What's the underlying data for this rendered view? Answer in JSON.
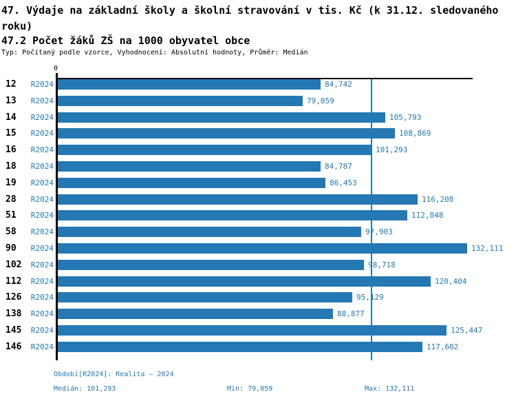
{
  "header": {
    "title": "47. Výdaje na základní školy a školní stravování v tis. Kč (k 31.12. sledovaného roku)",
    "subtitle": "47.2 Počet žáků ZŠ na 1000 obyvatel obce",
    "meta": "Typ: Počítaný podle vzorce, Vyhodnocení: Absolutní hodnoty, Průměr: Medián"
  },
  "axis": {
    "zero_label": "0"
  },
  "footer": {
    "period": "Období[R2024]: Realita – 2024",
    "median": "Medián: 101,293",
    "min": "Min: 79,059",
    "max": "Max: 132,111"
  },
  "colors": {
    "bar": "#2478b4",
    "text_blue": "#1f77b4",
    "axis": "#000000"
  },
  "chart_data": {
    "type": "bar",
    "orientation": "horizontal",
    "title": "47. Výdaje na základní školy a školní stravování v tis. Kč (k 31.12. sledovaného roku)",
    "subtitle": "47.2 Počet žáků ZŠ na 1000 obyvatel obce",
    "categories": [
      "12",
      "13",
      "14",
      "15",
      "16",
      "18",
      "19",
      "28",
      "51",
      "58",
      "90",
      "102",
      "112",
      "126",
      "138",
      "145",
      "146"
    ],
    "series": [
      {
        "name": "R2024",
        "values": [
          84.742,
          79.059,
          105.793,
          108.869,
          101.293,
          84.787,
          86.453,
          116.208,
          112.848,
          97.903,
          132.111,
          98.718,
          120.404,
          95.129,
          88.877,
          125.447,
          117.602
        ],
        "value_labels": [
          "84,742",
          "79,059",
          "105,793",
          "108,869",
          "101,293",
          "84,787",
          "86,453",
          "116,208",
          "112,848",
          "97,903",
          "132,111",
          "98,718",
          "120,404",
          "95,129",
          "88,877",
          "125,447",
          "117,602"
        ]
      }
    ],
    "xlim": [
      0,
      134.1
    ],
    "median": 101.293,
    "min": 79.059,
    "max": 132.111,
    "grid": false,
    "legend_position": "none"
  }
}
